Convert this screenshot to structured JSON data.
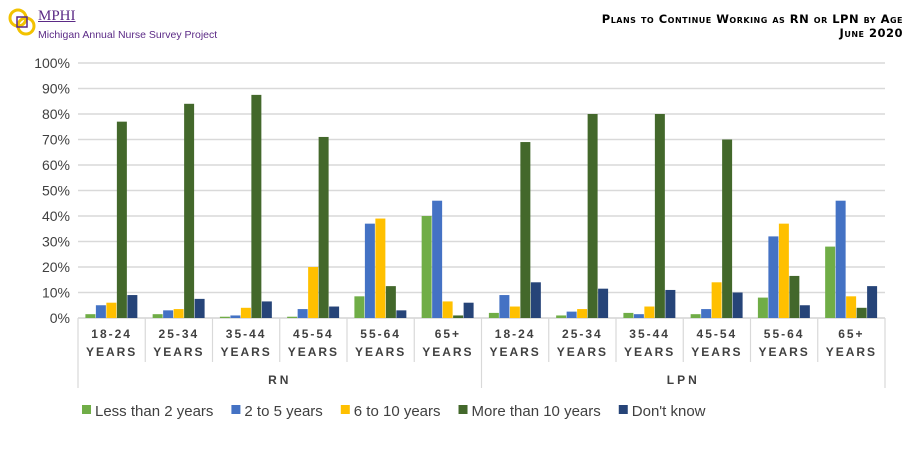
{
  "header": {
    "logo_text": "MPHI",
    "project": "Michigan Annual Nurse Survey Project",
    "title": "Plans to Continue Working as RN or LPN by Age",
    "subtitle": "June 2020"
  },
  "chart_data": {
    "type": "bar",
    "title": "Plans to Continue Working as RN or LPN by Age",
    "subtitle": "June 2020",
    "ylim": [
      0,
      100
    ],
    "yticks": [
      "0%",
      "10%",
      "20%",
      "30%",
      "40%",
      "50%",
      "60%",
      "70%",
      "80%",
      "90%",
      "100%"
    ],
    "grid": true,
    "legend": "bottom",
    "groups": [
      "RN",
      "LPN"
    ],
    "categories": [
      [
        "18-24",
        "YEARS"
      ],
      [
        "25-34",
        "YEARS"
      ],
      [
        "35-44",
        "YEARS"
      ],
      [
        "45-54",
        "YEARS"
      ],
      [
        "55-64",
        "YEARS"
      ],
      [
        "65+",
        "YEARS"
      ]
    ],
    "series": [
      {
        "name": "Less than 2 years",
        "color": "#70ad47",
        "values": [
          [
            1.5,
            1.5,
            0.5,
            0.5,
            8.5,
            40
          ],
          [
            2,
            1,
            2,
            1.5,
            8,
            28
          ]
        ]
      },
      {
        "name": "2 to 5 years",
        "color": "#4472c4",
        "values": [
          [
            5,
            3,
            1,
            3.5,
            37,
            46
          ],
          [
            9,
            2.5,
            1.5,
            3.5,
            32,
            46
          ]
        ]
      },
      {
        "name": "6 to 10 years",
        "color": "#ffc000",
        "values": [
          [
            6,
            3.5,
            4,
            20,
            39,
            6.5
          ],
          [
            4.5,
            3.5,
            4.5,
            14,
            37,
            8.5
          ]
        ]
      },
      {
        "name": "More than 10 years",
        "color": "#43682b",
        "values": [
          [
            77,
            84,
            87.5,
            71,
            12.5,
            1
          ],
          [
            69,
            80,
            80,
            70,
            16.5,
            4
          ]
        ]
      },
      {
        "name": "Don't know",
        "color": "#264478",
        "values": [
          [
            9,
            7.5,
            6.5,
            4.5,
            3,
            6
          ],
          [
            14,
            11.5,
            11,
            10,
            5,
            12.5
          ]
        ]
      }
    ]
  }
}
